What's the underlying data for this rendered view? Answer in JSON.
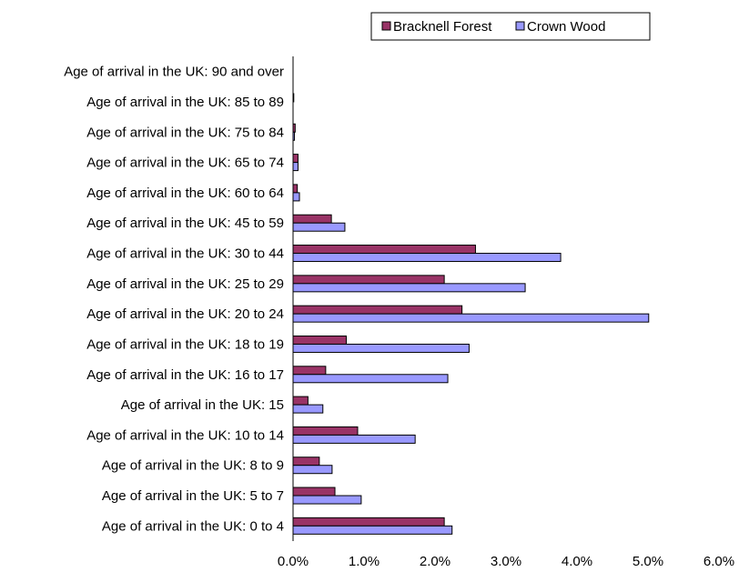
{
  "chart_data": {
    "type": "bar",
    "orientation": "horizontal",
    "title": "",
    "xlabel": "",
    "ylabel": "",
    "xlim": [
      0,
      6
    ],
    "x_ticks": [
      "0.0%",
      "1.0%",
      "2.0%",
      "3.0%",
      "4.0%",
      "5.0%",
      "6.0%"
    ],
    "grid": false,
    "legend_position": "top-right",
    "categories": [
      "Age of arrival in the UK: 90 and over",
      "Age of arrival in the UK: 85 to 89",
      "Age of arrival in the UK: 75 to 84",
      "Age of arrival in the UK: 65 to 74",
      "Age of arrival in the UK: 60 to 64",
      "Age of arrival in the UK: 45 to 59",
      "Age of arrival in the UK: 30 to 44",
      "Age of arrival in the UK: 25 to 29",
      "Age of arrival in the UK: 20 to 24",
      "Age of arrival in the UK: 18 to 19",
      "Age of arrival in the UK: 16 to 17",
      "Age of arrival in the UK: 15",
      "Age of arrival in the UK: 10 to 14",
      "Age of arrival in the UK: 8 to 9",
      "Age of arrival in the UK: 5 to 7",
      "Age of arrival in the UK: 0 to 4"
    ],
    "series": [
      {
        "name": "Bracknell Forest",
        "color": "#993366",
        "values": [
          0.0,
          0.01,
          0.03,
          0.07,
          0.06,
          0.54,
          2.57,
          2.13,
          2.38,
          0.75,
          0.46,
          0.21,
          0.91,
          0.37,
          0.59,
          2.13
        ]
      },
      {
        "name": "Crown Wood",
        "color": "#9999ff",
        "values": [
          0.0,
          0.0,
          0.02,
          0.07,
          0.09,
          0.73,
          3.77,
          3.27,
          5.01,
          2.48,
          2.18,
          0.42,
          1.72,
          0.55,
          0.96,
          2.24
        ]
      }
    ]
  }
}
